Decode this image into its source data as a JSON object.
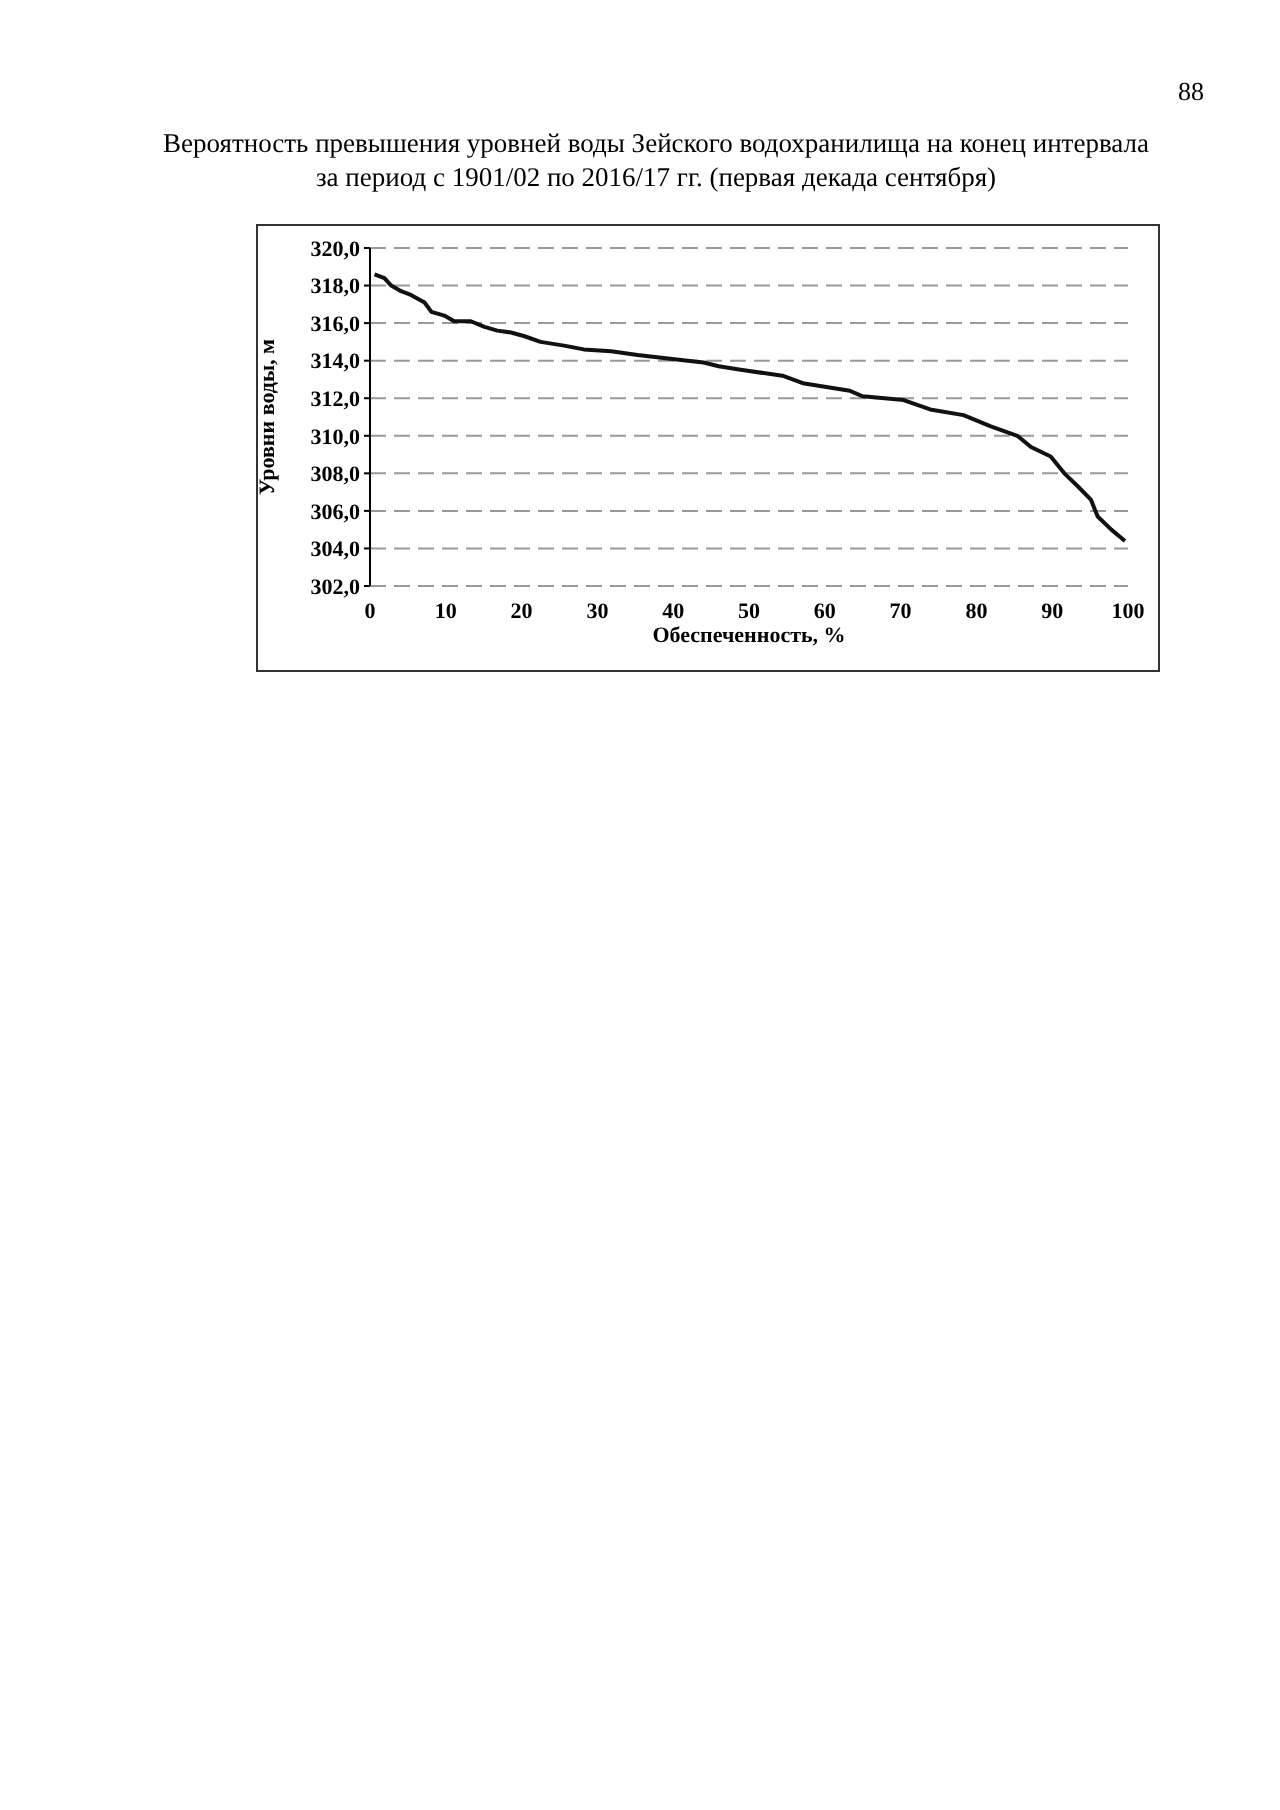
{
  "chart_data": {
    "type": "line",
    "title": "Вероятность превышения уровней воды Зейского водохранилища на конец интервала\nза период с 1901/02 по 2016/17 гг. (первая декада сентября)",
    "xlabel": "Обеспеченность, %",
    "ylabel": "Уровни воды, м",
    "annotations": [
      "88"
    ],
    "x": [
      0.6,
      1.9,
      2.8,
      4.1,
      5.4,
      7.2,
      8.1,
      9.8,
      11.1,
      13.3,
      15.1,
      16.8,
      18.6,
      20.4,
      22.5,
      25.6,
      28.2,
      31.8,
      35.3,
      39.6,
      44.0,
      46.0,
      49.1,
      54.4,
      57.1,
      63.3,
      65.0,
      70.4,
      73.9,
      78.3,
      81.9,
      85.4,
      87.2,
      89.8,
      91.6,
      93.4,
      95.1,
      96.0,
      97.8,
      99.6
    ],
    "series": [
      {
        "color": "#111111",
        "values": [
          318.6,
          318.4,
          318.0,
          317.7,
          317.5,
          317.1,
          316.6,
          316.4,
          316.1,
          316.1,
          315.8,
          315.6,
          315.5,
          315.3,
          315.0,
          314.8,
          314.6,
          314.5,
          314.3,
          314.1,
          313.9,
          313.7,
          313.5,
          313.2,
          312.8,
          312.4,
          312.1,
          311.9,
          311.4,
          311.1,
          310.5,
          310.0,
          309.4,
          308.9,
          308.0,
          307.3,
          306.6,
          305.7,
          305.0,
          304.4
        ]
      }
    ],
    "xlim": [
      0,
      100
    ],
    "xticks": [
      0,
      10,
      20,
      30,
      40,
      50,
      60,
      70,
      80,
      90,
      100
    ],
    "ylim": [
      302,
      320
    ],
    "yticks": [
      {
        "value": 302,
        "label": "302,0"
      },
      {
        "value": 304,
        "label": "304,0"
      },
      {
        "value": 306,
        "label": "306,0"
      },
      {
        "value": 308,
        "label": "308,0"
      },
      {
        "value": 310,
        "label": "310,0"
      },
      {
        "value": 312,
        "label": "312,0"
      },
      {
        "value": 314,
        "label": "314,0"
      },
      {
        "value": 316,
        "label": "316,0"
      },
      {
        "value": 318,
        "label": "318,0"
      },
      {
        "value": 320,
        "label": "320,0"
      }
    ],
    "grid": "y",
    "line_style": "solid"
  }
}
